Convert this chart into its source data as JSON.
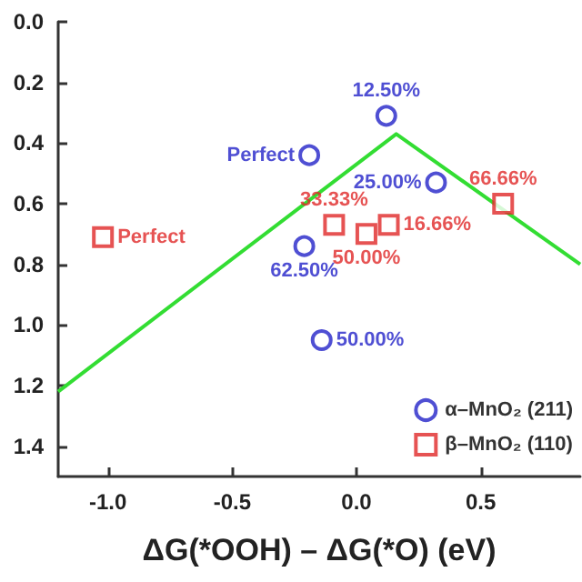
{
  "chart_data": {
    "type": "scatter",
    "xlabel": "ΔG(*OOH) – ΔG(*O) (eV)",
    "xlim": [
      -1.2,
      0.9
    ],
    "ylim": [
      1.5,
      0
    ],
    "xticks": [
      {
        "value": -1,
        "label": "-1.0"
      },
      {
        "value": -0.5,
        "label": "-0.5"
      },
      {
        "value": 0,
        "label": "0.0"
      },
      {
        "value": 0.5,
        "label": "0.5"
      }
    ],
    "yticks": [
      {
        "value": 0,
        "label": "0.0"
      },
      {
        "value": 0.2,
        "label": "0.2"
      },
      {
        "value": 0.4,
        "label": "0.4"
      },
      {
        "value": 0.6,
        "label": "0.6"
      },
      {
        "value": 0.8,
        "label": "0.8"
      },
      {
        "value": 1,
        "label": "1.0"
      },
      {
        "value": 1.2,
        "label": "1.2"
      },
      {
        "value": 1.4,
        "label": "1.4"
      }
    ],
    "legend": "bottom right",
    "series": [
      {
        "name": "α–MnO₂ (211)",
        "color": "#2323c8",
        "marker": "circle",
        "x": [
          0.12,
          -0.19,
          0.32,
          -0.21,
          -0.14
        ],
        "values": [
          0.31,
          0.44,
          0.53,
          0.74,
          1.05
        ]
      },
      {
        "name": "β–MnO₂ (110)",
        "color": "#e02828",
        "marker": "square",
        "x": [
          -1.02,
          -0.09,
          0.04,
          0.13,
          0.59
        ],
        "values": [
          0.71,
          0.67,
          0.7,
          0.67,
          0.6
        ]
      },
      {
        "type": "line",
        "color": "#33dd33",
        "marker": "none",
        "x": [
          -1.2,
          0.16,
          0.9
        ],
        "values": [
          1.22,
          0.37,
          0.8
        ]
      }
    ],
    "annotations": [
      {
        "text": "12.50%",
        "x": 0.12,
        "y": 0.31
      },
      {
        "text": "Perfect",
        "x": -0.19,
        "y": 0.44
      },
      {
        "text": "25.00%",
        "x": 0.32,
        "y": 0.53
      },
      {
        "text": "62.50%",
        "x": -0.21,
        "y": 0.74
      },
      {
        "text": "50.00%",
        "x": -0.14,
        "y": 1.05
      },
      {
        "text": "Perfect",
        "x": -1.02,
        "y": 0.71
      },
      {
        "text": "33.33%",
        "x": -0.09,
        "y": 0.67
      },
      {
        "text": "50.00%",
        "x": 0.04,
        "y": 0.7
      },
      {
        "text": "16.66%",
        "x": 0.13,
        "y": 0.67
      },
      {
        "text": "66.66%",
        "x": 0.59,
        "y": 0.6
      }
    ]
  }
}
